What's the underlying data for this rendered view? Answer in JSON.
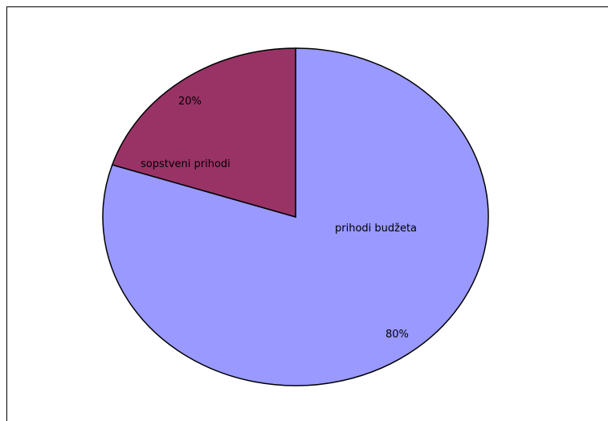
{
  "chart_data": {
    "type": "pie",
    "title": "",
    "slices": [
      {
        "label": "prihodi budžeta",
        "value": 80,
        "percent_label": "80%",
        "color": "#9999ff"
      },
      {
        "label": "sopstveni prihodi",
        "value": 20,
        "percent_label": "20%",
        "color": "#993366"
      }
    ],
    "start_angle_deg": 0,
    "direction": "clockwise",
    "legend": "none",
    "slice_border_color": "#000000"
  }
}
